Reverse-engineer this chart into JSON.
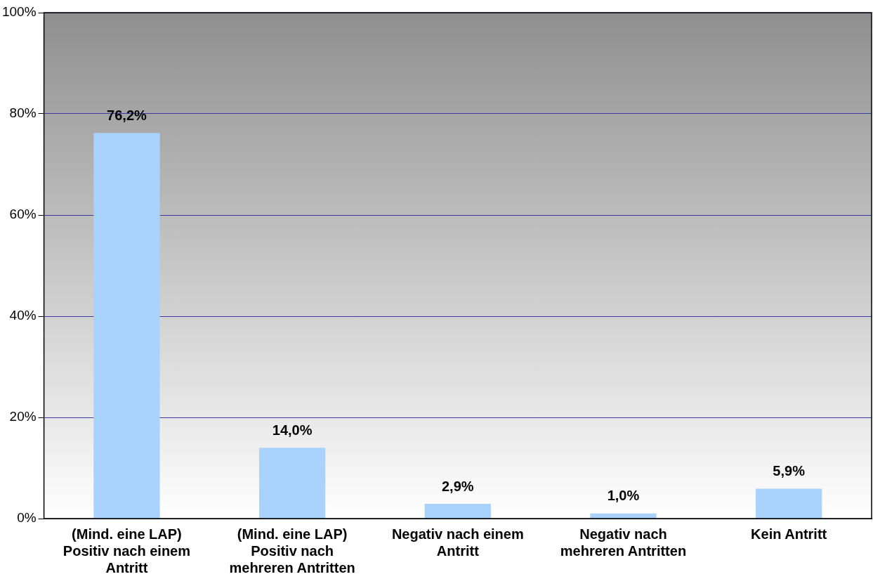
{
  "chart_data": {
    "type": "bar",
    "categories": [
      "(Mind. eine LAP) Positiv nach einem Antritt",
      "(Mind. eine LAP) Positiv nach mehreren Antritten",
      "Negativ nach einem Antritt",
      "Negativ nach mehreren Antritten",
      "Kein Antritt"
    ],
    "values": [
      76.2,
      14.0,
      2.9,
      1.0,
      5.9
    ],
    "value_labels": [
      "76,2%",
      "14,0%",
      "2,9%",
      "1,0%",
      "5,9%"
    ],
    "color": "#a9d3fd",
    "ylim": [
      0,
      100
    ],
    "yticks": [
      {
        "value": 0,
        "label": "0%"
      },
      {
        "value": 20,
        "label": "20%"
      },
      {
        "value": 40,
        "label": "40%"
      },
      {
        "value": 60,
        "label": "60%"
      },
      {
        "value": 80,
        "label": "80%"
      },
      {
        "value": 100,
        "label": "100%"
      }
    ],
    "grid": "y",
    "legend": false
  }
}
